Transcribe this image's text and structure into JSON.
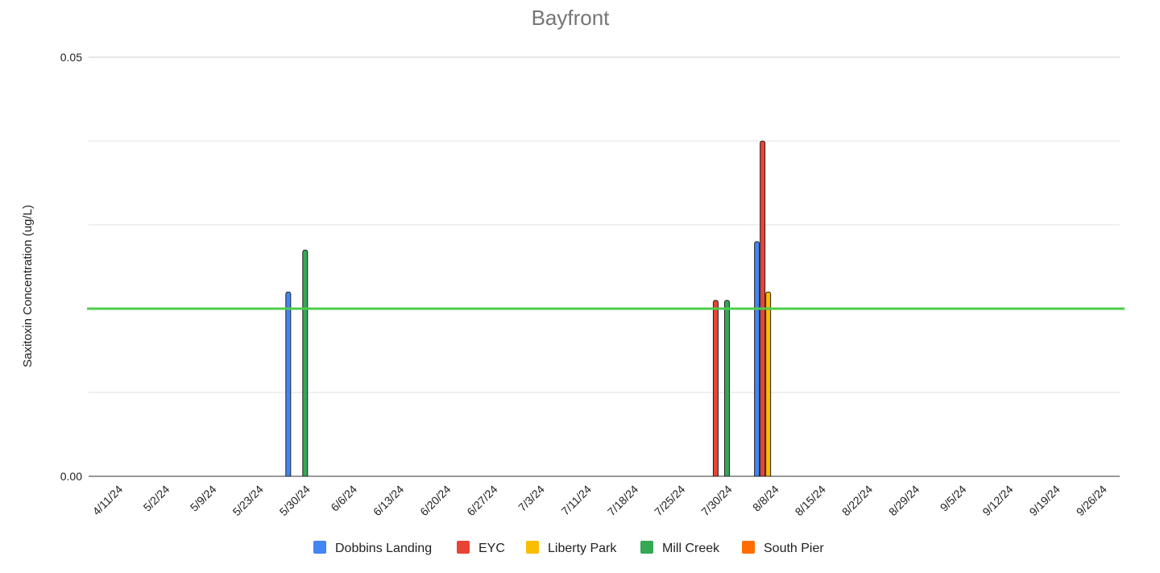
{
  "chart_data": {
    "type": "bar",
    "title": "Bayfront",
    "y_label": "Saxitoxin Concentration (ug/L)",
    "categories": [
      "4/11/24",
      "5/2/24",
      "5/9/24",
      "5/23/24",
      "5/30/24",
      "6/6/24",
      "6/13/24",
      "6/20/24",
      "6/27/24",
      "7/3/24",
      "7/11/24",
      "7/18/24",
      "7/25/24",
      "7/30/24",
      "8/8/24",
      "8/15/24",
      "8/22/24",
      "8/29/24",
      "9/5/24",
      "9/12/24",
      "9/19/24",
      "9/26/24"
    ],
    "series": [
      {
        "name": "Dobbins Landing",
        "color": "#4285f4",
        "values": [
          null,
          null,
          null,
          null,
          0.022,
          null,
          null,
          null,
          null,
          null,
          null,
          null,
          null,
          null,
          0.028,
          null,
          null,
          null,
          null,
          null,
          null,
          null
        ]
      },
      {
        "name": "EYC",
        "color": "#ea4335",
        "values": [
          null,
          null,
          null,
          null,
          null,
          null,
          null,
          null,
          null,
          null,
          null,
          null,
          null,
          0.021,
          0.04,
          null,
          null,
          null,
          null,
          null,
          null,
          null
        ]
      },
      {
        "name": "Liberty Park",
        "color": "#fbbc04",
        "values": [
          null,
          null,
          null,
          null,
          null,
          null,
          null,
          null,
          null,
          null,
          null,
          null,
          null,
          null,
          0.022,
          null,
          null,
          null,
          null,
          null,
          null,
          null
        ]
      },
      {
        "name": "Mill Creek",
        "color": "#34a853",
        "values": [
          null,
          null,
          null,
          null,
          0.027,
          null,
          null,
          null,
          null,
          null,
          null,
          null,
          null,
          0.021,
          null,
          null,
          null,
          null,
          null,
          null,
          null,
          null
        ]
      },
      {
        "name": "South Pier",
        "color": "#ff6d01",
        "values": [
          null,
          null,
          null,
          null,
          null,
          null,
          null,
          null,
          null,
          null,
          null,
          null,
          null,
          null,
          null,
          null,
          null,
          null,
          null,
          null,
          null,
          null
        ]
      }
    ],
    "ylim": [
      0,
      0.05
    ],
    "yticks": [
      {
        "value": 0,
        "label": "0.00"
      },
      0.05
    ],
    "minor_yticks": [
      0.01,
      0.02,
      0.03,
      0.04
    ],
    "grid": true,
    "threshold": 0.02,
    "threshold_color": "#4ccd4c",
    "legend": "bottom"
  }
}
